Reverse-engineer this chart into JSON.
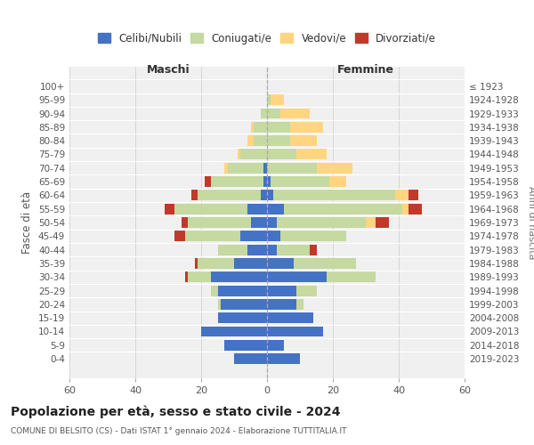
{
  "age_groups": [
    "0-4",
    "5-9",
    "10-14",
    "15-19",
    "20-24",
    "25-29",
    "30-34",
    "35-39",
    "40-44",
    "45-49",
    "50-54",
    "55-59",
    "60-64",
    "65-69",
    "70-74",
    "75-79",
    "80-84",
    "85-89",
    "90-94",
    "95-99",
    "100+"
  ],
  "birth_years": [
    "2019-2023",
    "2014-2018",
    "2009-2013",
    "2004-2008",
    "1999-2003",
    "1994-1998",
    "1989-1993",
    "1984-1988",
    "1979-1983",
    "1974-1978",
    "1969-1973",
    "1964-1968",
    "1959-1963",
    "1954-1958",
    "1949-1953",
    "1944-1948",
    "1939-1943",
    "1934-1938",
    "1929-1933",
    "1924-1928",
    "≤ 1923"
  ],
  "male": {
    "celibi": [
      10,
      13,
      20,
      15,
      14,
      15,
      17,
      10,
      6,
      8,
      5,
      6,
      2,
      1,
      1,
      0,
      0,
      0,
      0,
      0,
      0
    ],
    "coniugati": [
      0,
      0,
      0,
      0,
      1,
      2,
      7,
      11,
      9,
      17,
      19,
      22,
      19,
      16,
      11,
      8,
      4,
      4,
      2,
      0,
      0
    ],
    "vedovi": [
      0,
      0,
      0,
      0,
      0,
      0,
      0,
      0,
      0,
      0,
      0,
      0,
      0,
      0,
      1,
      1,
      2,
      1,
      0,
      0,
      0
    ],
    "divorziati": [
      0,
      0,
      0,
      0,
      0,
      0,
      1,
      1,
      0,
      3,
      2,
      3,
      2,
      2,
      0,
      0,
      0,
      0,
      0,
      0,
      0
    ]
  },
  "female": {
    "nubili": [
      10,
      5,
      17,
      14,
      9,
      9,
      18,
      8,
      3,
      4,
      3,
      5,
      2,
      1,
      0,
      0,
      0,
      0,
      0,
      0,
      0
    ],
    "coniugate": [
      0,
      0,
      0,
      0,
      2,
      6,
      15,
      19,
      10,
      20,
      27,
      36,
      37,
      18,
      15,
      9,
      7,
      7,
      4,
      1,
      0
    ],
    "vedove": [
      0,
      0,
      0,
      0,
      0,
      0,
      0,
      0,
      0,
      0,
      3,
      2,
      4,
      5,
      11,
      9,
      8,
      10,
      9,
      4,
      0
    ],
    "divorziate": [
      0,
      0,
      0,
      0,
      0,
      0,
      0,
      0,
      2,
      0,
      4,
      4,
      3,
      0,
      0,
      0,
      0,
      0,
      0,
      0,
      0
    ]
  },
  "colors": {
    "celibi_nubili": "#4472c4",
    "coniugati": "#c5d9a0",
    "vedovi": "#ffd580",
    "divorziati": "#c0392b"
  },
  "xlim": 60,
  "title": "Popolazione per età, sesso e stato civile - 2024",
  "subtitle": "COMUNE DI BELSITO (CS) - Dati ISTAT 1° gennaio 2024 - Elaborazione TUTTITALIA.IT",
  "ylabel_left": "Fasce di età",
  "ylabel_right": "Anni di nascita",
  "xlabel_left": "Maschi",
  "xlabel_right": "Femmine",
  "bg_color": "#f0f0f0",
  "grid_color": "#cccccc"
}
